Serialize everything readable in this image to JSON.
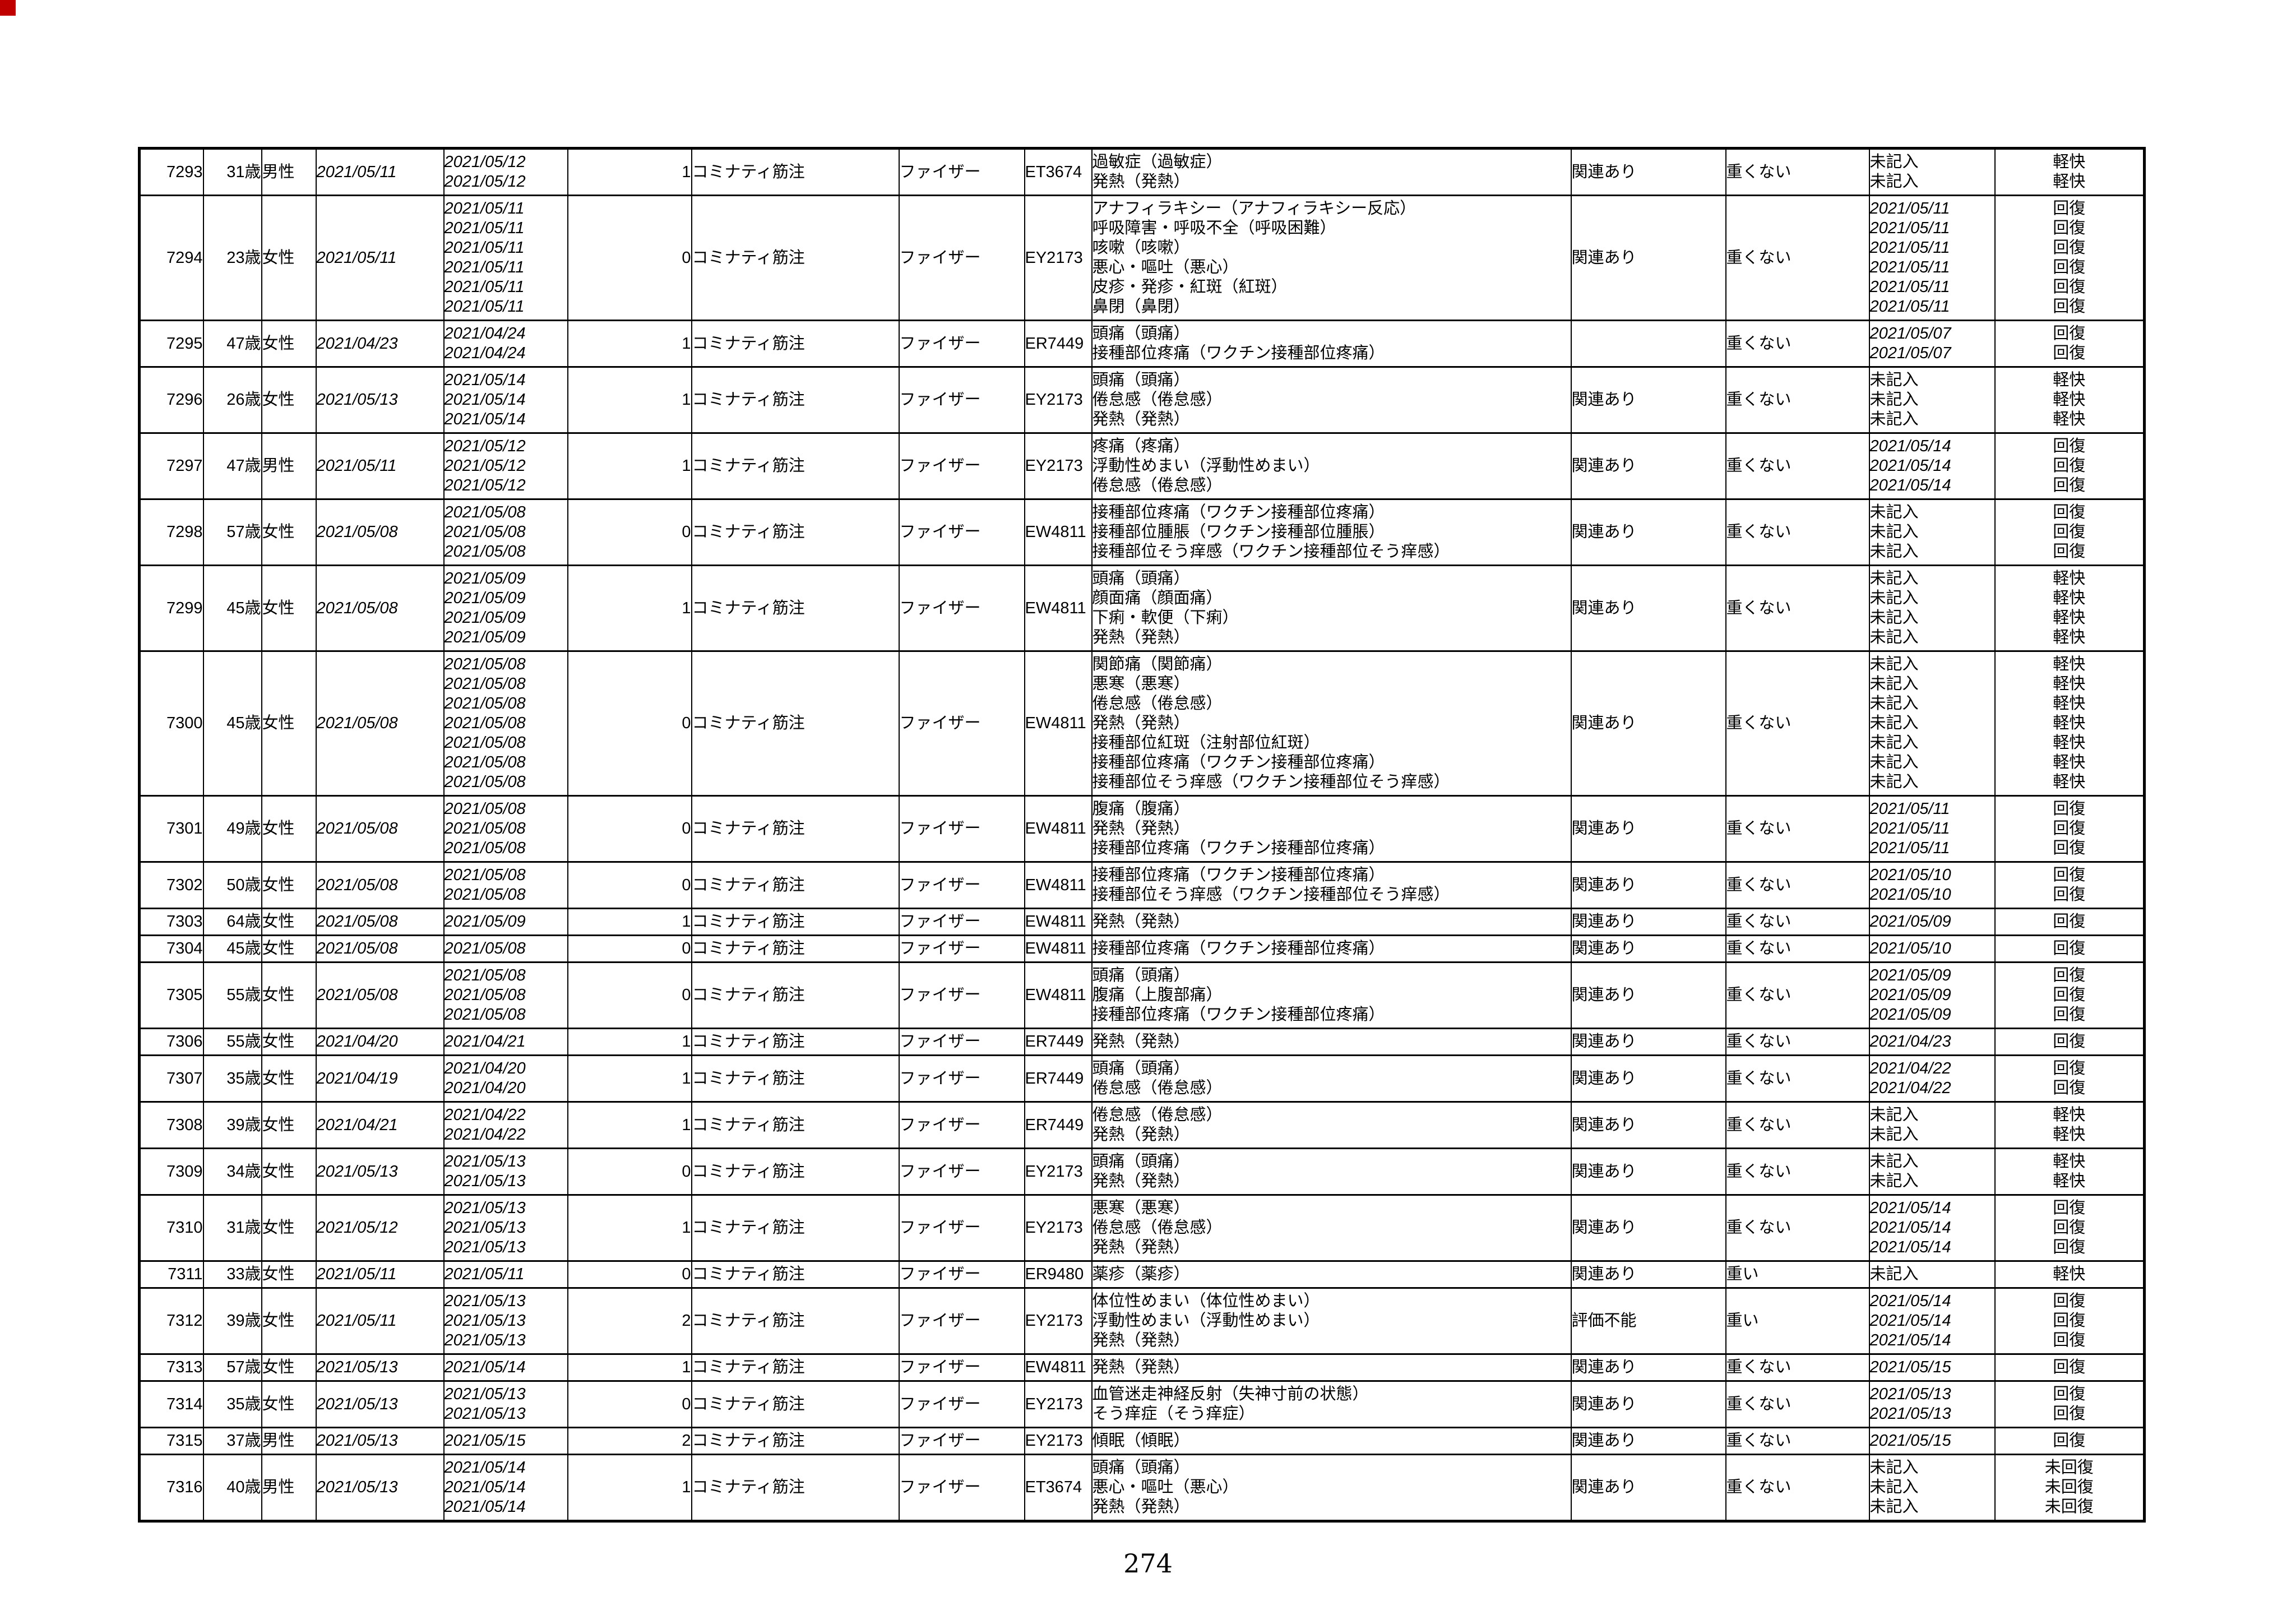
{
  "page": {
    "number": "274",
    "corner_marker_color": "#c00000"
  },
  "table": {
    "rows": [
      {
        "no": "7293",
        "age": "31歳",
        "sex": "男性",
        "vaccination_date": "2021/05/11",
        "onset_dates": [
          "2021/05/12",
          "2021/05/12"
        ],
        "days_to_onset": "1",
        "vaccine": "コミナティ筋注",
        "manufacturer": "ファイザー",
        "lot_no": "ET3674",
        "symptoms": [
          "過敏症（過敏症）",
          "発熱（発熱）"
        ],
        "causality": "関連あり",
        "seriousness": "重くない",
        "outcome_dates": [
          "未記入",
          "未記入"
        ],
        "outcomes": [
          "軽快",
          "軽快"
        ]
      },
      {
        "no": "7294",
        "age": "23歳",
        "sex": "女性",
        "vaccination_date": "2021/05/11",
        "onset_dates": [
          "2021/05/11",
          "2021/05/11",
          "2021/05/11",
          "2021/05/11",
          "2021/05/11",
          "2021/05/11"
        ],
        "days_to_onset": "0",
        "vaccine": "コミナティ筋注",
        "manufacturer": "ファイザー",
        "lot_no": "EY2173",
        "symptoms": [
          "アナフィラキシー（アナフィラキシー反応）",
          "呼吸障害・呼吸不全（呼吸困難）",
          "咳嗽（咳嗽）",
          "悪心・嘔吐（悪心）",
          "皮疹・発疹・紅斑（紅斑）",
          "鼻閉（鼻閉）"
        ],
        "causality": "関連あり",
        "seriousness": "重くない",
        "outcome_dates": [
          "2021/05/11",
          "2021/05/11",
          "2021/05/11",
          "2021/05/11",
          "2021/05/11",
          "2021/05/11"
        ],
        "outcomes": [
          "回復",
          "回復",
          "回復",
          "回復",
          "回復",
          "回復"
        ]
      },
      {
        "no": "7295",
        "age": "47歳",
        "sex": "女性",
        "vaccination_date": "2021/04/23",
        "onset_dates": [
          "2021/04/24",
          "2021/04/24"
        ],
        "days_to_onset": "1",
        "vaccine": "コミナティ筋注",
        "manufacturer": "ファイザー",
        "lot_no": "ER7449",
        "symptoms": [
          "頭痛（頭痛）",
          "接種部位疼痛（ワクチン接種部位疼痛）"
        ],
        "causality": "",
        "seriousness": "重くない",
        "outcome_dates": [
          "2021/05/07",
          "2021/05/07"
        ],
        "outcomes": [
          "回復",
          "回復"
        ]
      },
      {
        "no": "7296",
        "age": "26歳",
        "sex": "女性",
        "vaccination_date": "2021/05/13",
        "onset_dates": [
          "2021/05/14",
          "2021/05/14",
          "2021/05/14"
        ],
        "days_to_onset": "1",
        "vaccine": "コミナティ筋注",
        "manufacturer": "ファイザー",
        "lot_no": "EY2173",
        "symptoms": [
          "頭痛（頭痛）",
          "倦怠感（倦怠感）",
          "発熱（発熱）"
        ],
        "causality": "関連あり",
        "seriousness": "重くない",
        "outcome_dates": [
          "未記入",
          "未記入",
          "未記入"
        ],
        "outcomes": [
          "軽快",
          "軽快",
          "軽快"
        ]
      },
      {
        "no": "7297",
        "age": "47歳",
        "sex": "男性",
        "vaccination_date": "2021/05/11",
        "onset_dates": [
          "2021/05/12",
          "2021/05/12",
          "2021/05/12"
        ],
        "days_to_onset": "1",
        "vaccine": "コミナティ筋注",
        "manufacturer": "ファイザー",
        "lot_no": "EY2173",
        "symptoms": [
          "疼痛（疼痛）",
          "浮動性めまい（浮動性めまい）",
          "倦怠感（倦怠感）"
        ],
        "causality": "関連あり",
        "seriousness": "重くない",
        "outcome_dates": [
          "2021/05/14",
          "2021/05/14",
          "2021/05/14"
        ],
        "outcomes": [
          "回復",
          "回復",
          "回復"
        ]
      },
      {
        "no": "7298",
        "age": "57歳",
        "sex": "女性",
        "vaccination_date": "2021/05/08",
        "onset_dates": [
          "2021/05/08",
          "2021/05/08",
          "2021/05/08"
        ],
        "days_to_onset": "0",
        "vaccine": "コミナティ筋注",
        "manufacturer": "ファイザー",
        "lot_no": "EW4811",
        "symptoms": [
          "接種部位疼痛（ワクチン接種部位疼痛）",
          "接種部位腫脹（ワクチン接種部位腫脹）",
          "接種部位そう痒感（ワクチン接種部位そう痒感）"
        ],
        "causality": "関連あり",
        "seriousness": "重くない",
        "outcome_dates": [
          "未記入",
          "未記入",
          "未記入"
        ],
        "outcomes": [
          "回復",
          "回復",
          "回復"
        ]
      },
      {
        "no": "7299",
        "age": "45歳",
        "sex": "女性",
        "vaccination_date": "2021/05/08",
        "onset_dates": [
          "2021/05/09",
          "2021/05/09",
          "2021/05/09",
          "2021/05/09"
        ],
        "days_to_onset": "1",
        "vaccine": "コミナティ筋注",
        "manufacturer": "ファイザー",
        "lot_no": "EW4811",
        "symptoms": [
          "頭痛（頭痛）",
          "顔面痛（顔面痛）",
          "下痢・軟便（下痢）",
          "発熱（発熱）"
        ],
        "causality": "関連あり",
        "seriousness": "重くない",
        "outcome_dates": [
          "未記入",
          "未記入",
          "未記入",
          "未記入"
        ],
        "outcomes": [
          "軽快",
          "軽快",
          "軽快",
          "軽快"
        ]
      },
      {
        "no": "7300",
        "age": "45歳",
        "sex": "女性",
        "vaccination_date": "2021/05/08",
        "onset_dates": [
          "2021/05/08",
          "2021/05/08",
          "2021/05/08",
          "2021/05/08",
          "2021/05/08",
          "2021/05/08",
          "2021/05/08"
        ],
        "days_to_onset": "0",
        "vaccine": "コミナティ筋注",
        "manufacturer": "ファイザー",
        "lot_no": "EW4811",
        "symptoms": [
          "関節痛（関節痛）",
          "悪寒（悪寒）",
          "倦怠感（倦怠感）",
          "発熱（発熱）",
          "接種部位紅斑（注射部位紅斑）",
          "接種部位疼痛（ワクチン接種部位疼痛）",
          "接種部位そう痒感（ワクチン接種部位そう痒感）"
        ],
        "causality": "関連あり",
        "seriousness": "重くない",
        "outcome_dates": [
          "未記入",
          "未記入",
          "未記入",
          "未記入",
          "未記入",
          "未記入",
          "未記入"
        ],
        "outcomes": [
          "軽快",
          "軽快",
          "軽快",
          "軽快",
          "軽快",
          "軽快",
          "軽快"
        ]
      },
      {
        "no": "7301",
        "age": "49歳",
        "sex": "女性",
        "vaccination_date": "2021/05/08",
        "onset_dates": [
          "2021/05/08",
          "2021/05/08",
          "2021/05/08"
        ],
        "days_to_onset": "0",
        "vaccine": "コミナティ筋注",
        "manufacturer": "ファイザー",
        "lot_no": "EW4811",
        "symptoms": [
          "腹痛（腹痛）",
          "発熱（発熱）",
          "接種部位疼痛（ワクチン接種部位疼痛）"
        ],
        "causality": "関連あり",
        "seriousness": "重くない",
        "outcome_dates": [
          "2021/05/11",
          "2021/05/11",
          "2021/05/11"
        ],
        "outcomes": [
          "回復",
          "回復",
          "回復"
        ]
      },
      {
        "no": "7302",
        "age": "50歳",
        "sex": "女性",
        "vaccination_date": "2021/05/08",
        "onset_dates": [
          "2021/05/08",
          "2021/05/08"
        ],
        "days_to_onset": "0",
        "vaccine": "コミナティ筋注",
        "manufacturer": "ファイザー",
        "lot_no": "EW4811",
        "symptoms": [
          "接種部位疼痛（ワクチン接種部位疼痛）",
          "接種部位そう痒感（ワクチン接種部位そう痒感）"
        ],
        "causality": "関連あり",
        "seriousness": "重くない",
        "outcome_dates": [
          "2021/05/10",
          "2021/05/10"
        ],
        "outcomes": [
          "回復",
          "回復"
        ]
      },
      {
        "no": "7303",
        "age": "64歳",
        "sex": "女性",
        "vaccination_date": "2021/05/08",
        "onset_dates": [
          "2021/05/09"
        ],
        "days_to_onset": "1",
        "vaccine": "コミナティ筋注",
        "manufacturer": "ファイザー",
        "lot_no": "EW4811",
        "symptoms": [
          "発熱（発熱）"
        ],
        "causality": "関連あり",
        "seriousness": "重くない",
        "outcome_dates": [
          "2021/05/09"
        ],
        "outcomes": [
          "回復"
        ]
      },
      {
        "no": "7304",
        "age": "45歳",
        "sex": "女性",
        "vaccination_date": "2021/05/08",
        "onset_dates": [
          "2021/05/08"
        ],
        "days_to_onset": "0",
        "vaccine": "コミナティ筋注",
        "manufacturer": "ファイザー",
        "lot_no": "EW4811",
        "symptoms": [
          "接種部位疼痛（ワクチン接種部位疼痛）"
        ],
        "causality": "関連あり",
        "seriousness": "重くない",
        "outcome_dates": [
          "2021/05/10"
        ],
        "outcomes": [
          "回復"
        ]
      },
      {
        "no": "7305",
        "age": "55歳",
        "sex": "女性",
        "vaccination_date": "2021/05/08",
        "onset_dates": [
          "2021/05/08",
          "2021/05/08",
          "2021/05/08"
        ],
        "days_to_onset": "0",
        "vaccine": "コミナティ筋注",
        "manufacturer": "ファイザー",
        "lot_no": "EW4811",
        "symptoms": [
          "頭痛（頭痛）",
          "腹痛（上腹部痛）",
          "接種部位疼痛（ワクチン接種部位疼痛）"
        ],
        "causality": "関連あり",
        "seriousness": "重くない",
        "outcome_dates": [
          "2021/05/09",
          "2021/05/09",
          "2021/05/09"
        ],
        "outcomes": [
          "回復",
          "回復",
          "回復"
        ]
      },
      {
        "no": "7306",
        "age": "55歳",
        "sex": "女性",
        "vaccination_date": "2021/04/20",
        "onset_dates": [
          "2021/04/21"
        ],
        "days_to_onset": "1",
        "vaccine": "コミナティ筋注",
        "manufacturer": "ファイザー",
        "lot_no": "ER7449",
        "symptoms": [
          "発熱（発熱）"
        ],
        "causality": "関連あり",
        "seriousness": "重くない",
        "outcome_dates": [
          "2021/04/23"
        ],
        "outcomes": [
          "回復"
        ]
      },
      {
        "no": "7307",
        "age": "35歳",
        "sex": "女性",
        "vaccination_date": "2021/04/19",
        "onset_dates": [
          "2021/04/20",
          "2021/04/20"
        ],
        "days_to_onset": "1",
        "vaccine": "コミナティ筋注",
        "manufacturer": "ファイザー",
        "lot_no": "ER7449",
        "symptoms": [
          "頭痛（頭痛）",
          "倦怠感（倦怠感）"
        ],
        "causality": "関連あり",
        "seriousness": "重くない",
        "outcome_dates": [
          "2021/04/22",
          "2021/04/22"
        ],
        "outcomes": [
          "回復",
          "回復"
        ]
      },
      {
        "no": "7308",
        "age": "39歳",
        "sex": "女性",
        "vaccination_date": "2021/04/21",
        "onset_dates": [
          "2021/04/22",
          "2021/04/22"
        ],
        "days_to_onset": "1",
        "vaccine": "コミナティ筋注",
        "manufacturer": "ファイザー",
        "lot_no": "ER7449",
        "symptoms": [
          "倦怠感（倦怠感）",
          "発熱（発熱）"
        ],
        "causality": "関連あり",
        "seriousness": "重くない",
        "outcome_dates": [
          "未記入",
          "未記入"
        ],
        "outcomes": [
          "軽快",
          "軽快"
        ]
      },
      {
        "no": "7309",
        "age": "34歳",
        "sex": "女性",
        "vaccination_date": "2021/05/13",
        "onset_dates": [
          "2021/05/13",
          "2021/05/13"
        ],
        "days_to_onset": "0",
        "vaccine": "コミナティ筋注",
        "manufacturer": "ファイザー",
        "lot_no": "EY2173",
        "symptoms": [
          "頭痛（頭痛）",
          "発熱（発熱）"
        ],
        "causality": "関連あり",
        "seriousness": "重くない",
        "outcome_dates": [
          "未記入",
          "未記入"
        ],
        "outcomes": [
          "軽快",
          "軽快"
        ]
      },
      {
        "no": "7310",
        "age": "31歳",
        "sex": "女性",
        "vaccination_date": "2021/05/12",
        "onset_dates": [
          "2021/05/13",
          "2021/05/13",
          "2021/05/13"
        ],
        "days_to_onset": "1",
        "vaccine": "コミナティ筋注",
        "manufacturer": "ファイザー",
        "lot_no": "EY2173",
        "symptoms": [
          "悪寒（悪寒）",
          "倦怠感（倦怠感）",
          "発熱（発熱）"
        ],
        "causality": "関連あり",
        "seriousness": "重くない",
        "outcome_dates": [
          "2021/05/14",
          "2021/05/14",
          "2021/05/14"
        ],
        "outcomes": [
          "回復",
          "回復",
          "回復"
        ]
      },
      {
        "no": "7311",
        "age": "33歳",
        "sex": "女性",
        "vaccination_date": "2021/05/11",
        "onset_dates": [
          "2021/05/11"
        ],
        "days_to_onset": "0",
        "vaccine": "コミナティ筋注",
        "manufacturer": "ファイザー",
        "lot_no": "ER9480",
        "symptoms": [
          "薬疹（薬疹）"
        ],
        "causality": "関連あり",
        "seriousness": "重い",
        "outcome_dates": [
          "未記入"
        ],
        "outcomes": [
          "軽快"
        ]
      },
      {
        "no": "7312",
        "age": "39歳",
        "sex": "女性",
        "vaccination_date": "2021/05/11",
        "onset_dates": [
          "2021/05/13",
          "2021/05/13",
          "2021/05/13"
        ],
        "days_to_onset": "2",
        "vaccine": "コミナティ筋注",
        "manufacturer": "ファイザー",
        "lot_no": "EY2173",
        "symptoms": [
          "体位性めまい（体位性めまい）",
          "浮動性めまい（浮動性めまい）",
          "発熱（発熱）"
        ],
        "causality": "評価不能",
        "seriousness": "重い",
        "outcome_dates": [
          "2021/05/14",
          "2021/05/14",
          "2021/05/14"
        ],
        "outcomes": [
          "回復",
          "回復",
          "回復"
        ]
      },
      {
        "no": "7313",
        "age": "57歳",
        "sex": "女性",
        "vaccination_date": "2021/05/13",
        "onset_dates": [
          "2021/05/14"
        ],
        "days_to_onset": "1",
        "vaccine": "コミナティ筋注",
        "manufacturer": "ファイザー",
        "lot_no": "EW4811",
        "symptoms": [
          "発熱（発熱）"
        ],
        "causality": "関連あり",
        "seriousness": "重くない",
        "outcome_dates": [
          "2021/05/15"
        ],
        "outcomes": [
          "回復"
        ]
      },
      {
        "no": "7314",
        "age": "35歳",
        "sex": "女性",
        "vaccination_date": "2021/05/13",
        "onset_dates": [
          "2021/05/13",
          "2021/05/13"
        ],
        "days_to_onset": "0",
        "vaccine": "コミナティ筋注",
        "manufacturer": "ファイザー",
        "lot_no": "EY2173",
        "symptoms": [
          "血管迷走神経反射（失神寸前の状態）",
          "そう痒症（そう痒症）"
        ],
        "causality": "関連あり",
        "seriousness": "重くない",
        "outcome_dates": [
          "2021/05/13",
          "2021/05/13"
        ],
        "outcomes": [
          "回復",
          "回復"
        ]
      },
      {
        "no": "7315",
        "age": "37歳",
        "sex": "男性",
        "vaccination_date": "2021/05/13",
        "onset_dates": [
          "2021/05/15"
        ],
        "days_to_onset": "2",
        "vaccine": "コミナティ筋注",
        "manufacturer": "ファイザー",
        "lot_no": "EY2173",
        "symptoms": [
          "傾眠（傾眠）"
        ],
        "causality": "関連あり",
        "seriousness": "重くない",
        "outcome_dates": [
          "2021/05/15"
        ],
        "outcomes": [
          "回復"
        ]
      },
      {
        "no": "7316",
        "age": "40歳",
        "sex": "男性",
        "vaccination_date": "2021/05/13",
        "onset_dates": [
          "2021/05/14",
          "2021/05/14",
          "2021/05/14"
        ],
        "days_to_onset": "1",
        "vaccine": "コミナティ筋注",
        "manufacturer": "ファイザー",
        "lot_no": "ET3674",
        "symptoms": [
          "頭痛（頭痛）",
          "悪心・嘔吐（悪心）",
          "発熱（発熱）"
        ],
        "causality": "関連あり",
        "seriousness": "重くない",
        "outcome_dates": [
          "未記入",
          "未記入",
          "未記入"
        ],
        "outcomes": [
          "未回復",
          "未回復",
          "未回復"
        ]
      }
    ]
  }
}
